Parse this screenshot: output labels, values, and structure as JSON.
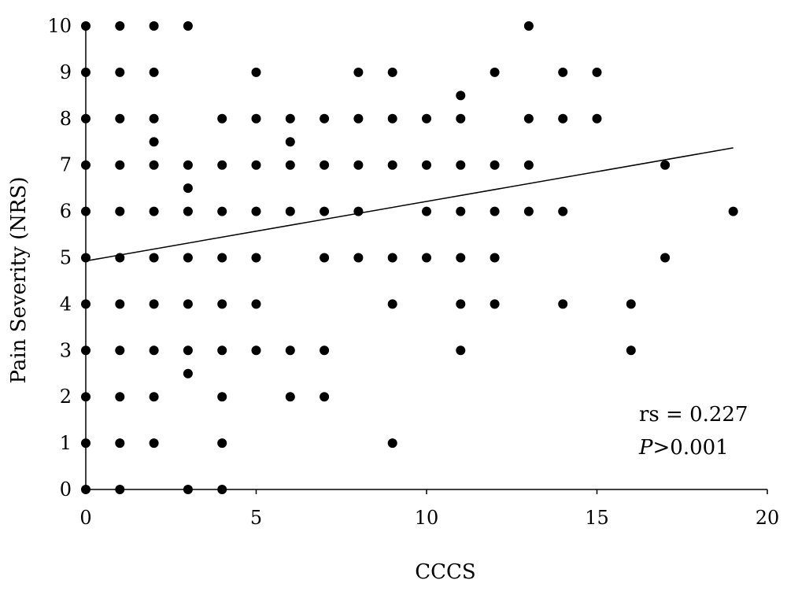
{
  "chart_data": {
    "type": "scatter",
    "title": "",
    "xlabel": "CCCS",
    "ylabel": "Pain Severity (NRS)",
    "xlim": [
      0,
      20
    ],
    "ylim": [
      0,
      10
    ],
    "xticks": [
      0,
      5,
      10,
      15,
      20
    ],
    "yticks": [
      0,
      1,
      2,
      3,
      4,
      5,
      6,
      7,
      8,
      9,
      10
    ],
    "grid": false,
    "legend": "none",
    "marker_color": "#000000",
    "points": [
      [
        0,
        10
      ],
      [
        0,
        9
      ],
      [
        0,
        8
      ],
      [
        0,
        7
      ],
      [
        0,
        6
      ],
      [
        0,
        5
      ],
      [
        0,
        4
      ],
      [
        0,
        3
      ],
      [
        0,
        2
      ],
      [
        0,
        1
      ],
      [
        0,
        0
      ],
      [
        1,
        10
      ],
      [
        1,
        9
      ],
      [
        1,
        8
      ],
      [
        1,
        7
      ],
      [
        1,
        6
      ],
      [
        1,
        5
      ],
      [
        1,
        4
      ],
      [
        1,
        3
      ],
      [
        1,
        2
      ],
      [
        1,
        1
      ],
      [
        1,
        0
      ],
      [
        2,
        10
      ],
      [
        2,
        9
      ],
      [
        2,
        8
      ],
      [
        2,
        7.5
      ],
      [
        2,
        7
      ],
      [
        2,
        6
      ],
      [
        2,
        5
      ],
      [
        2,
        4
      ],
      [
        2,
        3
      ],
      [
        2,
        2
      ],
      [
        2,
        1
      ],
      [
        3,
        10
      ],
      [
        3,
        7
      ],
      [
        3,
        6.5
      ],
      [
        3,
        6
      ],
      [
        3,
        5
      ],
      [
        3,
        4
      ],
      [
        3,
        3
      ],
      [
        3,
        2.5
      ],
      [
        3,
        0
      ],
      [
        4,
        8
      ],
      [
        4,
        7
      ],
      [
        4,
        6
      ],
      [
        4,
        5
      ],
      [
        4,
        4
      ],
      [
        4,
        3
      ],
      [
        4,
        2
      ],
      [
        4,
        1
      ],
      [
        4,
        0
      ],
      [
        5,
        9
      ],
      [
        5,
        8
      ],
      [
        5,
        7
      ],
      [
        5,
        6
      ],
      [
        5,
        5
      ],
      [
        5,
        4
      ],
      [
        5,
        3
      ],
      [
        6,
        8
      ],
      [
        6,
        7.5
      ],
      [
        6,
        7
      ],
      [
        6,
        6
      ],
      [
        6,
        3
      ],
      [
        6,
        2
      ],
      [
        7,
        8
      ],
      [
        7,
        7
      ],
      [
        7,
        6
      ],
      [
        7,
        5
      ],
      [
        7,
        3
      ],
      [
        7,
        2
      ],
      [
        8,
        9
      ],
      [
        8,
        8
      ],
      [
        8,
        7
      ],
      [
        8,
        6
      ],
      [
        8,
        5
      ],
      [
        9,
        9
      ],
      [
        9,
        8
      ],
      [
        9,
        7
      ],
      [
        9,
        5
      ],
      [
        9,
        4
      ],
      [
        9,
        1
      ],
      [
        10,
        8
      ],
      [
        10,
        7
      ],
      [
        10,
        6
      ],
      [
        10,
        5
      ],
      [
        11,
        8.5
      ],
      [
        11,
        8
      ],
      [
        11,
        7
      ],
      [
        11,
        6
      ],
      [
        11,
        5
      ],
      [
        11,
        4
      ],
      [
        11,
        3
      ],
      [
        12,
        9
      ],
      [
        12,
        7
      ],
      [
        12,
        6
      ],
      [
        12,
        5
      ],
      [
        12,
        4
      ],
      [
        13,
        10
      ],
      [
        13,
        8
      ],
      [
        13,
        7
      ],
      [
        13,
        6
      ],
      [
        14,
        9
      ],
      [
        14,
        8
      ],
      [
        14,
        6
      ],
      [
        14,
        4
      ],
      [
        15,
        9
      ],
      [
        15,
        8
      ],
      [
        16,
        4
      ],
      [
        16,
        3
      ],
      [
        17,
        7
      ],
      [
        17,
        5
      ],
      [
        19,
        6
      ]
    ],
    "trendline": {
      "x": [
        0,
        19
      ],
      "y": [
        4.93,
        7.37
      ]
    },
    "annotations": {
      "rs_text": "rs = 0.227",
      "p_italic": "P",
      "p_rest": ">0.001"
    }
  }
}
